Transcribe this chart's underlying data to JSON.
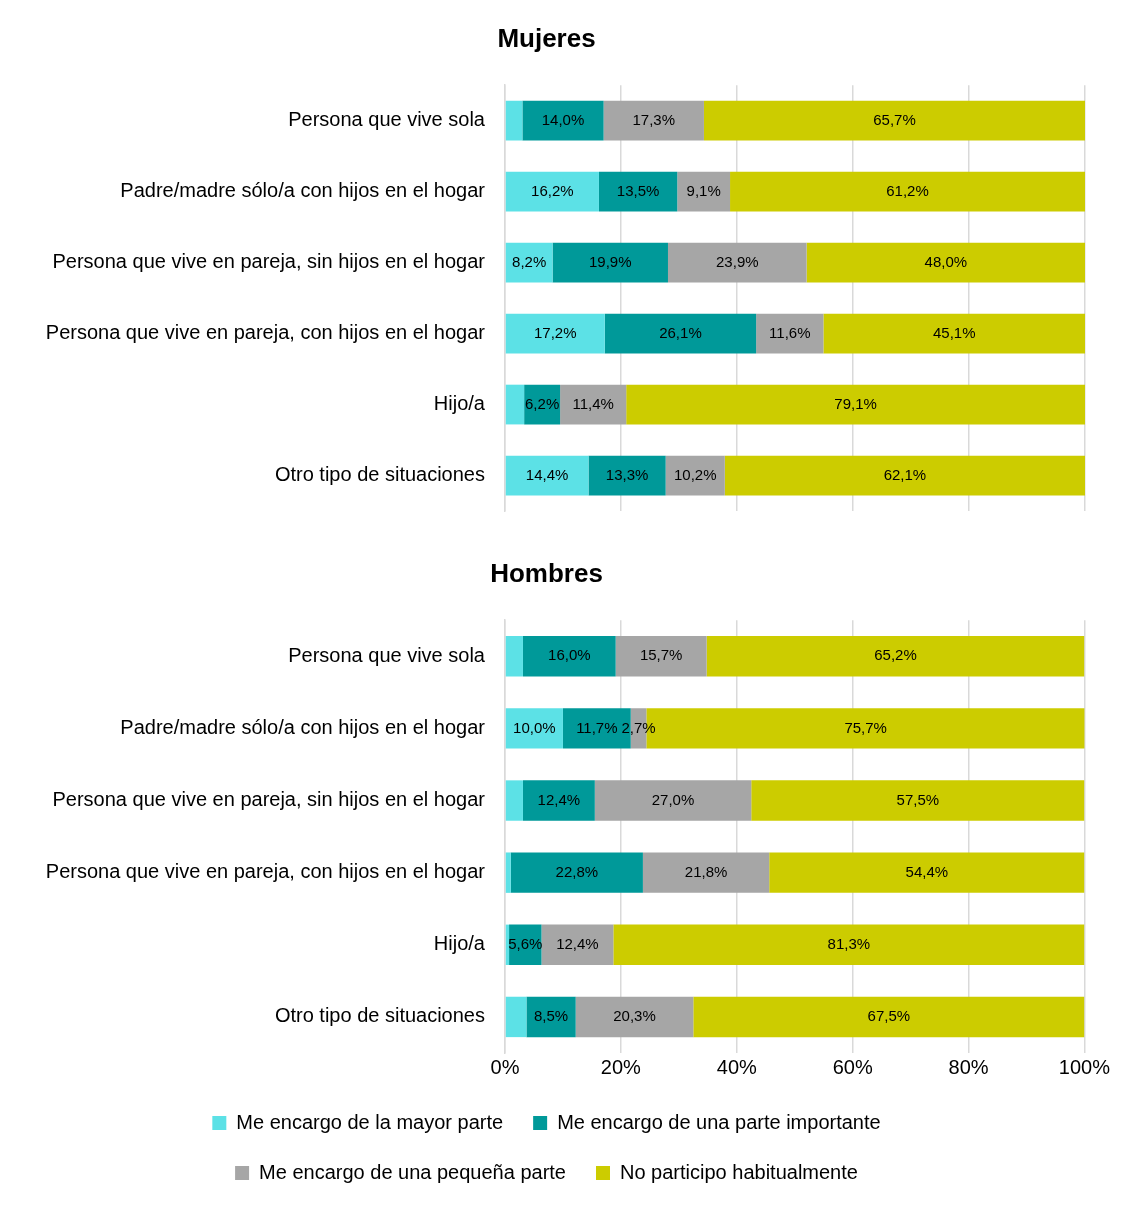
{
  "chart_data": [
    {
      "type": "bar",
      "orientation": "horizontal",
      "stacked": true,
      "title": "Mujeres",
      "categories": [
        "Persona que vive sola",
        "Padre/madre sólo/a con hijos en el hogar",
        "Persona que vive en pareja, sin hijos en el hogar",
        "Persona que vive en pareja, con hijos en el hogar",
        "Hijo/a",
        "Otro tipo de situaciones"
      ],
      "series": [
        {
          "color": "#5ce1e6",
          "values": [
            3.0,
            16.2,
            8.2,
            17.2,
            3.3,
            14.4
          ],
          "value_labels": [
            null,
            "16,2%",
            "8,2%",
            "17,2%",
            null,
            "14,4%"
          ]
        },
        {
          "color": "#009999",
          "values": [
            14.0,
            13.5,
            19.9,
            26.1,
            6.2,
            13.3
          ],
          "value_labels": [
            "14,0%",
            "13,5%",
            "19,9%",
            "26,1%",
            "6,2%",
            "13,3%"
          ]
        },
        {
          "color": "#a6a6a6",
          "values": [
            17.3,
            9.1,
            23.9,
            11.6,
            11.4,
            10.2
          ],
          "value_labels": [
            "17,3%",
            "9,1%",
            "23,9%",
            "11,6%",
            "11,4%",
            "10,2%"
          ]
        },
        {
          "color": "#cccc00",
          "values": [
            65.7,
            61.2,
            48.0,
            45.1,
            79.1,
            62.1
          ],
          "value_labels": [
            "65,7%",
            "61,2%",
            "48,0%",
            "45,1%",
            "79,1%",
            "62,1%"
          ]
        }
      ],
      "xlim": [
        0,
        100
      ],
      "xticks": [
        0,
        20,
        40,
        60,
        80,
        100
      ],
      "grid": "x",
      "tick_labels": "y",
      "legend": false
    },
    {
      "type": "bar",
      "orientation": "horizontal",
      "stacked": true,
      "title": "Hombres",
      "categories": [
        "Persona que vive sola",
        "Padre/madre sólo/a con hijos en el hogar",
        "Persona que vive en pareja, sin hijos en el hogar",
        "Persona que vive en pareja, con hijos en el hogar",
        "Hijo/a",
        "Otro tipo de situaciones"
      ],
      "series": [
        {
          "name": "Me encargo de la mayor parte",
          "color": "#5ce1e6",
          "values": [
            3.1,
            10.0,
            3.1,
            1.0,
            0.7,
            3.7
          ],
          "value_labels": [
            null,
            "10,0%",
            null,
            null,
            null,
            null
          ]
        },
        {
          "name": "Me encargo de una parte importante",
          "color": "#009999",
          "values": [
            16.0,
            11.7,
            12.4,
            22.8,
            5.6,
            8.5
          ],
          "value_labels": [
            "16,0%",
            "11,7%",
            "12,4%",
            "22,8%",
            "5,6%",
            "8,5%"
          ]
        },
        {
          "name": "Me encargo de una pequeña parte",
          "color": "#a6a6a6",
          "values": [
            15.7,
            2.7,
            27.0,
            21.8,
            12.4,
            20.3
          ],
          "value_labels": [
            "15,7%",
            "2,7%",
            "27,0%",
            "21,8%",
            "12,4%",
            "20,3%"
          ]
        },
        {
          "name": "No participo habitualmente",
          "color": "#cccc00",
          "values": [
            65.2,
            75.7,
            57.5,
            54.4,
            81.3,
            67.5
          ],
          "value_labels": [
            "65,2%",
            "75,7%",
            "57,5%",
            "54,4%",
            "81,3%",
            "67,5%"
          ]
        }
      ],
      "xlim": [
        0,
        100
      ],
      "xticks": [
        {
          "value": 0,
          "label": "0%"
        },
        {
          "value": 20,
          "label": "20%"
        },
        {
          "value": 40,
          "label": "40%"
        },
        {
          "value": 60,
          "label": "60%"
        },
        {
          "value": 80,
          "label": "80%"
        },
        {
          "value": 100,
          "label": "100%"
        }
      ],
      "grid": "x",
      "legend": "bottom"
    }
  ]
}
